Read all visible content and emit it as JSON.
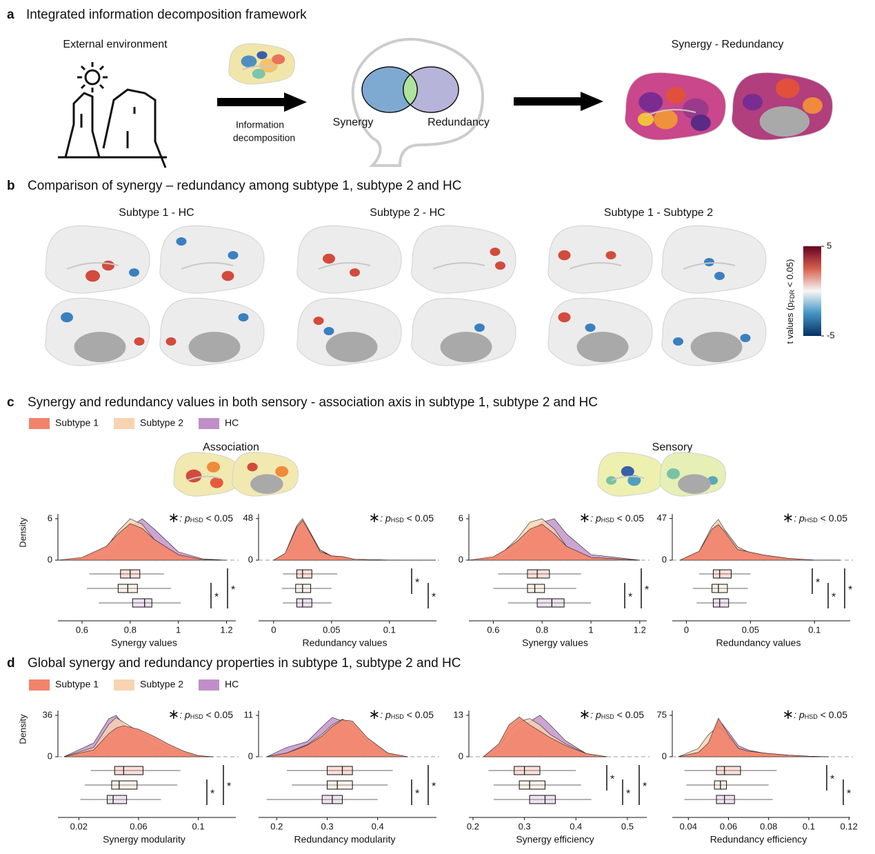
{
  "panels": {
    "a": {
      "letter": "a",
      "title": "Integrated information decomposition framework",
      "external": "External environment",
      "arrow_label": [
        "Information",
        "decomposition"
      ],
      "synergy": "Synergy",
      "redundancy": "Redundancy",
      "result": "Synergy - Redundancy"
    },
    "b": {
      "letter": "b",
      "title": "Comparison of synergy – redundancy among subtype 1, subtype 2 and HC",
      "maps": [
        "Subtype 1 - HC",
        "Subtype 2 - HC",
        "Subtype 1 - Subtype 2"
      ],
      "colorbar": {
        "label": [
          "t values (p",
          "FDR",
          " < 0.05)"
        ],
        "lim": [
          -5,
          5
        ],
        "ticks": [
          5,
          -5
        ]
      }
    },
    "c": {
      "letter": "c",
      "title": "Synergy and redundancy values in both sensory - association axis in subtype 1, subtype 2 and HC",
      "groups": [
        "Association",
        "Sensory"
      ]
    },
    "d": {
      "letter": "d",
      "title": "Global synergy and redundancy properties in subtype 1, subtype 2 and HC"
    }
  },
  "chart_data": [
    {
      "type": "density_box",
      "ylabel": "Density",
      "xlabel": "Synergy values",
      "xlim": [
        0.5,
        1.25
      ],
      "xticks": [
        0.6,
        0.8,
        1,
        1.2
      ],
      "ylim": [
        0,
        6.7
      ],
      "yticks": [
        0,
        6
      ],
      "annotation": [
        "∗",
        ": p",
        "HSD",
        " < 0.05"
      ],
      "significance": [
        "*",
        "*"
      ],
      "x": [
        0.5,
        0.6,
        0.7,
        0.75,
        0.8,
        0.85,
        0.9,
        1.0,
        1.1,
        1.2
      ],
      "series": [
        {
          "name": "Subtype 1",
          "color": "#f2836b",
          "density": [
            0,
            0.4,
            2.0,
            3.8,
            5.3,
            4.6,
            3.0,
            0.8,
            0.1,
            0
          ],
          "box": {
            "whisker_low": 0.63,
            "q1": 0.76,
            "median": 0.8,
            "q3": 0.84,
            "whisker_high": 0.94
          }
        },
        {
          "name": "Subtype 2",
          "color": "#f8d3b0",
          "density": [
            0,
            0.2,
            1.8,
            4.2,
            6.0,
            5.2,
            3.0,
            0.6,
            0.05,
            0
          ],
          "box": {
            "whisker_low": 0.62,
            "q1": 0.75,
            "median": 0.79,
            "q3": 0.83,
            "whisker_high": 0.97
          }
        },
        {
          "name": "HC",
          "color": "#c08fc8",
          "density": [
            0,
            0.1,
            0.8,
            2.5,
            4.8,
            6.0,
            4.5,
            1.2,
            0.2,
            0
          ],
          "box": {
            "whisker_low": 0.67,
            "q1": 0.81,
            "median": 0.86,
            "q3": 0.89,
            "whisker_high": 1.01
          }
        }
      ]
    },
    {
      "type": "density_box",
      "xlabel": "Redundancy values",
      "xlim": [
        -0.013,
        0.143
      ],
      "xticks": [
        0,
        0.05,
        0.1
      ],
      "ylim": [
        0,
        53.4
      ],
      "yticks": [
        0,
        48
      ],
      "annotation": [
        "∗",
        ": p",
        "HSD",
        " < 0.05"
      ],
      "significance": [
        "*",
        "*"
      ],
      "x": [
        0,
        0.01,
        0.02,
        0.025,
        0.03,
        0.04,
        0.05,
        0.06,
        0.07,
        0.1,
        0.14
      ],
      "series": [
        {
          "name": "Subtype 1",
          "color": "#f2836b",
          "density": [
            0,
            8,
            38,
            46,
            35,
            10,
            5,
            4,
            1,
            0.2,
            0
          ],
          "box": {
            "whisker_low": 0.008,
            "q1": 0.02,
            "median": 0.025,
            "q3": 0.033,
            "whisker_high": 0.055
          }
        },
        {
          "name": "Subtype 2",
          "color": "#f8d3b0",
          "density": [
            0,
            8,
            40,
            48,
            36,
            12,
            4,
            3,
            1,
            0,
            0
          ],
          "box": {
            "whisker_low": 0.007,
            "q1": 0.019,
            "median": 0.025,
            "q3": 0.032,
            "whisker_high": 0.05
          }
        },
        {
          "name": "HC",
          "color": "#c08fc8",
          "density": [
            0,
            6,
            36,
            44,
            34,
            12,
            5,
            3,
            1,
            0,
            0
          ],
          "box": {
            "whisker_low": 0.008,
            "q1": 0.02,
            "median": 0.025,
            "q3": 0.033,
            "whisker_high": 0.05
          }
        }
      ]
    },
    {
      "type": "density_box",
      "xlabel": "Synergy values",
      "xlim": [
        0.5,
        1.24
      ],
      "xticks": [
        0.6,
        0.8,
        1,
        1.2
      ],
      "ylim": [
        0,
        6.7
      ],
      "yticks": [
        0,
        6
      ],
      "annotation": [
        "∗",
        ": p",
        "HSD",
        " < 0.05"
      ],
      "significance": [
        "*",
        "*"
      ],
      "x": [
        0.5,
        0.6,
        0.65,
        0.7,
        0.75,
        0.8,
        0.85,
        0.9,
        1.0,
        1.2
      ],
      "series": [
        {
          "name": "Subtype 1",
          "color": "#f2836b",
          "density": [
            0,
            0.5,
            1.5,
            2.8,
            4.5,
            5.2,
            3.8,
            2.0,
            0.4,
            0
          ],
          "box": {
            "whisker_low": 0.62,
            "q1": 0.74,
            "median": 0.78,
            "q3": 0.83,
            "whisker_high": 0.96
          }
        },
        {
          "name": "Subtype 2",
          "color": "#f8d3b0",
          "density": [
            0,
            0.3,
            1.5,
            3.2,
            5.5,
            6.0,
            4.5,
            2.0,
            0.3,
            0
          ],
          "box": {
            "whisker_low": 0.6,
            "q1": 0.74,
            "median": 0.77,
            "q3": 0.81,
            "whisker_high": 0.94
          }
        },
        {
          "name": "HC",
          "color": "#c08fc8",
          "density": [
            0,
            0.2,
            0.7,
            1.8,
            3.8,
            5.5,
            6.0,
            3.8,
            0.8,
            0
          ],
          "box": {
            "whisker_low": 0.66,
            "q1": 0.78,
            "median": 0.84,
            "q3": 0.89,
            "whisker_high": 1.0
          }
        }
      ]
    },
    {
      "type": "density_box",
      "xlabel": "Redundancy values",
      "xlim": [
        -0.011,
        0.13
      ],
      "xticks": [
        0,
        0.05,
        0.1
      ],
      "ylim": [
        0,
        52.2
      ],
      "yticks": [
        0,
        47
      ],
      "annotation": [
        "∗",
        ": p",
        "HSD",
        " < 0.05"
      ],
      "significance": [
        "*",
        "*",
        "*"
      ],
      "x": [
        -0.005,
        0.01,
        0.02,
        0.025,
        0.03,
        0.04,
        0.05,
        0.06,
        0.08,
        0.1,
        0.12
      ],
      "series": [
        {
          "name": "Subtype 1",
          "color": "#f2836b",
          "density": [
            0,
            10,
            35,
            40,
            32,
            12,
            9,
            6,
            2,
            0.2,
            0
          ],
          "box": {
            "whisker_low": 0.01,
            "q1": 0.021,
            "median": 0.026,
            "q3": 0.035,
            "whisker_high": 0.05
          }
        },
        {
          "name": "Subtype 2",
          "color": "#f8d3b0",
          "density": [
            0,
            10,
            38,
            46,
            34,
            15,
            8,
            5,
            1,
            0,
            0
          ],
          "box": {
            "whisker_low": 0.005,
            "q1": 0.02,
            "median": 0.025,
            "q3": 0.032,
            "whisker_high": 0.048
          }
        },
        {
          "name": "HC",
          "color": "#c08fc8",
          "density": [
            0,
            8,
            34,
            42,
            34,
            15,
            8,
            5,
            1,
            0,
            0
          ],
          "box": {
            "whisker_low": 0.008,
            "q1": 0.021,
            "median": 0.026,
            "q3": 0.033,
            "whisker_high": 0.047
          }
        }
      ]
    },
    {
      "type": "density_box",
      "ylabel": "Density",
      "xlabel": "Synergy modularity",
      "xlim": [
        0.006,
        0.127
      ],
      "xticks": [
        0.02,
        0.06,
        0.1
      ],
      "ylim": [
        0,
        40.2
      ],
      "yticks": [
        0,
        36
      ],
      "annotation": [
        "∗",
        ": p",
        "HSD",
        " < 0.05"
      ],
      "significance": [
        "*",
        "*"
      ],
      "x": [
        0.01,
        0.03,
        0.04,
        0.045,
        0.05,
        0.06,
        0.07,
        0.08,
        0.09,
        0.1,
        0.11
      ],
      "series": [
        {
          "name": "Subtype 1",
          "color": "#f2836b",
          "density": [
            0,
            6,
            20,
            25,
            27,
            24,
            18,
            11,
            5,
            1,
            0
          ],
          "box": {
            "whisker_low": 0.028,
            "q1": 0.044,
            "median": 0.05,
            "q3": 0.063,
            "whisker_high": 0.088
          }
        },
        {
          "name": "Subtype 2",
          "color": "#f8d3b0",
          "density": [
            0,
            8,
            28,
            34,
            30,
            22,
            15,
            8,
            3,
            0.5,
            0
          ],
          "box": {
            "whisker_low": 0.024,
            "q1": 0.042,
            "median": 0.047,
            "q3": 0.059,
            "whisker_high": 0.086
          }
        },
        {
          "name": "HC",
          "color": "#c08fc8",
          "density": [
            0,
            12,
            33,
            36,
            28,
            18,
            10,
            5,
            2,
            0.3,
            0
          ],
          "box": {
            "whisker_low": 0.021,
            "q1": 0.039,
            "median": 0.043,
            "q3": 0.052,
            "whisker_high": 0.075
          }
        }
      ]
    },
    {
      "type": "density_box",
      "xlabel": "Redundancy modularity",
      "xlim": [
        0.164,
        0.522
      ],
      "xticks": [
        0.2,
        0.3,
        0.4
      ],
      "ylim": [
        0,
        12.3
      ],
      "yticks": [
        0,
        11
      ],
      "annotation": [
        "∗",
        ": p",
        "HSD",
        " < 0.05"
      ],
      "significance": [
        "*",
        "*"
      ],
      "x": [
        0.18,
        0.22,
        0.26,
        0.29,
        0.31,
        0.33,
        0.35,
        0.38,
        0.42,
        0.46
      ],
      "series": [
        {
          "name": "Subtype 1",
          "color": "#f2836b",
          "density": [
            0,
            1,
            3,
            5.5,
            8,
            9.8,
            9.5,
            5,
            1,
            0
          ],
          "box": {
            "whisker_low": 0.22,
            "q1": 0.3,
            "median": 0.33,
            "q3": 0.35,
            "whisker_high": 0.43
          }
        },
        {
          "name": "Subtype 2",
          "color": "#f8d3b0",
          "density": [
            0,
            1,
            3.2,
            6,
            8.5,
            10,
            8.5,
            4,
            0.8,
            0
          ],
          "box": {
            "whisker_low": 0.23,
            "q1": 0.3,
            "median": 0.32,
            "q3": 0.35,
            "whisker_high": 0.42
          }
        },
        {
          "name": "HC",
          "color": "#c08fc8",
          "density": [
            0,
            2.5,
            4,
            8,
            10.5,
            9.5,
            7,
            3,
            0.5,
            0
          ],
          "box": {
            "whisker_low": 0.18,
            "q1": 0.29,
            "median": 0.31,
            "q3": 0.33,
            "whisker_high": 0.4
          }
        }
      ]
    },
    {
      "type": "density_box",
      "xlabel": "Synergy efficiency",
      "xlim": [
        0.192,
        0.543
      ],
      "xticks": [
        0.2,
        0.3,
        0.4,
        0.5
      ],
      "ylim": [
        0,
        14.5
      ],
      "yticks": [
        0,
        13
      ],
      "annotation": [
        "∗",
        ": p",
        "HSD",
        " < 0.05"
      ],
      "significance": [
        "*",
        "*",
        "*"
      ],
      "x": [
        0.22,
        0.25,
        0.27,
        0.29,
        0.31,
        0.33,
        0.35,
        0.38,
        0.42,
        0.46
      ],
      "series": [
        {
          "name": "Subtype 1",
          "color": "#f2836b",
          "density": [
            0,
            4,
            10,
            12.5,
            10,
            8,
            6,
            3.5,
            1,
            0
          ],
          "box": {
            "whisker_low": 0.23,
            "q1": 0.28,
            "median": 0.3,
            "q3": 0.33,
            "whisker_high": 0.4
          }
        },
        {
          "name": "Subtype 2",
          "color": "#f8d3b0",
          "density": [
            0,
            3,
            8,
            11,
            12,
            10,
            7,
            4,
            1,
            0
          ],
          "box": {
            "whisker_low": 0.24,
            "q1": 0.29,
            "median": 0.31,
            "q3": 0.34,
            "whisker_high": 0.41
          }
        },
        {
          "name": "HC",
          "color": "#c08fc8",
          "density": [
            0,
            2,
            5,
            9,
            11,
            13,
            10,
            5,
            1,
            0
          ],
          "box": {
            "whisker_low": 0.24,
            "q1": 0.31,
            "median": 0.34,
            "q3": 0.36,
            "whisker_high": 0.43
          }
        }
      ]
    },
    {
      "type": "density_box",
      "xlabel": "Redundancy efficiency",
      "xlim": [
        0.032,
        0.122
      ],
      "xticks": [
        0.04,
        0.06,
        0.08,
        0.1,
        0.12
      ],
      "ylim": [
        0,
        83.75
      ],
      "yticks": [
        0,
        75
      ],
      "annotation": [
        "∗",
        ": p",
        "HSD",
        " < 0.05"
      ],
      "significance": [
        "*",
        "*"
      ],
      "x": [
        0.035,
        0.045,
        0.05,
        0.055,
        0.06,
        0.065,
        0.07,
        0.08,
        0.09,
        0.1,
        0.11
      ],
      "series": [
        {
          "name": "Subtype 1",
          "color": "#f2836b",
          "density": [
            0,
            8,
            25,
            70,
            40,
            15,
            10,
            6,
            3,
            1,
            0
          ],
          "box": {
            "whisker_low": 0.038,
            "q1": 0.054,
            "median": 0.058,
            "q3": 0.066,
            "whisker_high": 0.084
          }
        },
        {
          "name": "Subtype 2",
          "color": "#f8d3b0",
          "density": [
            0,
            15,
            40,
            55,
            35,
            15,
            10,
            5,
            2,
            0.5,
            0
          ],
          "box": {
            "whisker_low": 0.039,
            "q1": 0.053,
            "median": 0.056,
            "q3": 0.059,
            "whisker_high": 0.08
          }
        },
        {
          "name": "HC",
          "color": "#c08fc8",
          "density": [
            0,
            6,
            25,
            68,
            45,
            20,
            12,
            5,
            2,
            0.5,
            0
          ],
          "box": {
            "whisker_low": 0.038,
            "q1": 0.054,
            "median": 0.058,
            "q3": 0.063,
            "whisker_high": 0.082
          }
        }
      ]
    }
  ]
}
